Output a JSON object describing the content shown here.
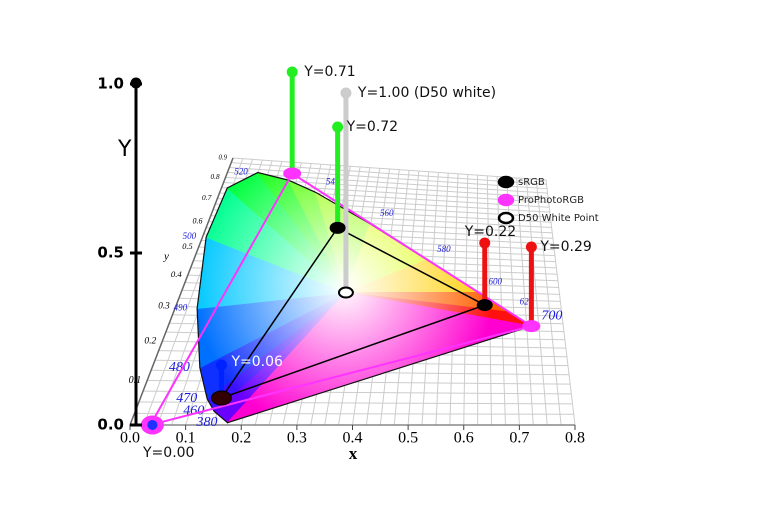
{
  "y_axis": {
    "title": "Y",
    "ticks": [
      "0.0",
      "0.5",
      "1.0"
    ]
  },
  "x_axis": {
    "title": "x",
    "ticks": [
      "0.0",
      "0.1",
      "0.2",
      "0.3",
      "0.4",
      "0.5",
      "0.6",
      "0.7",
      "0.8"
    ]
  },
  "floor_y_axis": {
    "title": "y",
    "ticks": [
      "0.1",
      "0.2",
      "0.3",
      "0.4",
      "0.5",
      "0.6",
      "0.7",
      "0.8",
      "0.9"
    ]
  },
  "wavelengths": [
    "380",
    "460",
    "470",
    "480",
    "490",
    "500",
    "520",
    "540",
    "560",
    "580",
    "600",
    "620",
    "700"
  ],
  "luminance_labels": [
    "Y=0.71",
    "Y=1.00 (D50 white)",
    "Y=0.72",
    "Y=0.22",
    "Y=0.29",
    "Y=0.06",
    "Y=0.00"
  ],
  "legend": [
    "sRGB",
    "ProPhotoRGB",
    "D50 White Point"
  ]
}
